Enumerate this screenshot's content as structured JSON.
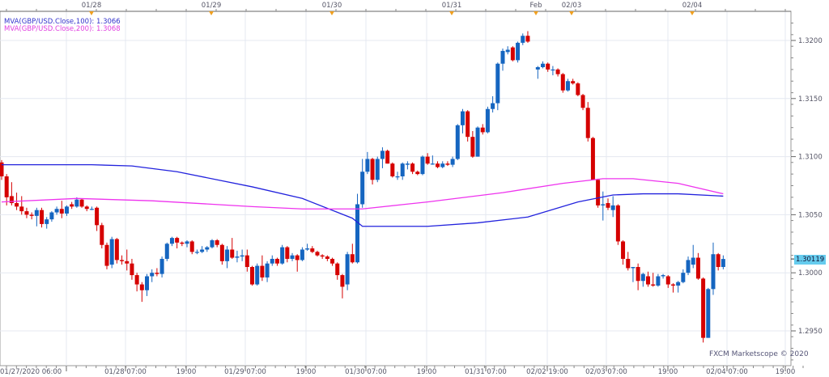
{
  "chart_data": {
    "type": "candlestick",
    "title": "",
    "instrument": "GBP/USD",
    "ylim": [
      1.292,
      1.3225
    ],
    "grid": true,
    "yticks": [
      "1.3200",
      "1.3150",
      "1.3100",
      "1.3050",
      "1.3000",
      "1.2950"
    ],
    "xticks_bottom": [
      "01/27/2020 06:00",
      "01/28 07:00",
      "19:00",
      "01/29 07:00",
      "19:00",
      "01/30 07:00",
      "19:00",
      "01/31 07:00",
      "02/02 19:00",
      "02/03 07:00",
      "19:00",
      "02/04 07:00",
      "19:00"
    ],
    "xticks_top": [
      "01/28",
      "01/29",
      "01/30",
      "01/31",
      "Feb",
      "02/03",
      "02/04"
    ],
    "last_price": "1.30119",
    "colors": {
      "up": "#1565c0",
      "down": "#d50000",
      "ma100": "#2222dd",
      "ma200": "#ee33ee",
      "last_price_bg": "#66ccee",
      "grid": "#e4e8f0"
    },
    "candle_format": [
      "open",
      "high",
      "low",
      "close"
    ],
    "candles": [
      [
        1.3095,
        1.3097,
        1.308,
        1.3083
      ],
      [
        1.3083,
        1.3085,
        1.3058,
        1.3065
      ],
      [
        1.3066,
        1.3078,
        1.3058,
        1.306
      ],
      [
        1.306,
        1.3069,
        1.3054,
        1.3057
      ],
      [
        1.3057,
        1.3066,
        1.305,
        1.3053
      ],
      [
        1.3053,
        1.3056,
        1.3047,
        1.305
      ],
      [
        1.305,
        1.3052,
        1.3046,
        1.3049
      ],
      [
        1.3049,
        1.3056,
        1.304,
        1.3054
      ],
      [
        1.3054,
        1.3056,
        1.3039,
        1.3042
      ],
      [
        1.3042,
        1.3048,
        1.3038,
        1.3046
      ],
      [
        1.3046,
        1.3053,
        1.3044,
        1.3052
      ],
      [
        1.3052,
        1.3057,
        1.305,
        1.3055
      ],
      [
        1.3055,
        1.3062,
        1.3047,
        1.3051
      ],
      [
        1.3051,
        1.3058,
        1.3049,
        1.3057
      ],
      [
        1.3059,
        1.3061,
        1.3055,
        1.3057
      ],
      [
        1.3057,
        1.3065,
        1.3056,
        1.3063
      ],
      [
        1.3063,
        1.3064,
        1.3056,
        1.3057
      ],
      [
        1.3057,
        1.3058,
        1.3053,
        1.3055
      ],
      [
        1.3055,
        1.3057,
        1.3054,
        1.3055
      ],
      [
        1.3056,
        1.3057,
        1.3036,
        1.3041
      ],
      [
        1.3041,
        1.3043,
        1.3021,
        1.3024
      ],
      [
        1.3024,
        1.3026,
        1.3003,
        1.3006
      ],
      [
        1.3007,
        1.3031,
        1.3004,
        1.3029
      ],
      [
        1.3029,
        1.303,
        1.3008,
        1.3011
      ],
      [
        1.3011,
        1.3015,
        1.3007,
        1.301
      ],
      [
        1.301,
        1.302,
        1.3002,
        1.3008
      ],
      [
        1.3008,
        1.3012,
        1.2994,
        1.2998
      ],
      [
        1.2998,
        1.3,
        1.2984,
        1.299
      ],
      [
        1.299,
        1.2992,
        1.2975,
        1.2985
      ],
      [
        1.2985,
        1.2999,
        1.298,
        1.2997
      ],
      [
        1.2997,
        1.3003,
        1.2992,
        1.3
      ],
      [
        1.3,
        1.3004,
        1.2997,
        1.2999
      ],
      [
        1.2999,
        1.3014,
        1.2996,
        1.3012
      ],
      [
        1.3012,
        1.3026,
        1.301,
        1.3025
      ],
      [
        1.3025,
        1.3031,
        1.3023,
        1.303
      ],
      [
        1.303,
        1.3031,
        1.3021,
        1.3026
      ],
      [
        1.3026,
        1.3027,
        1.3023,
        1.3025
      ],
      [
        1.3025,
        1.3028,
        1.3022,
        1.3027
      ],
      [
        1.3027,
        1.3028,
        1.3016,
        1.3018
      ],
      [
        1.3018,
        1.302,
        1.3016,
        1.3018
      ],
      [
        1.3018,
        1.3023,
        1.3017,
        1.302
      ],
      [
        1.302,
        1.3023,
        1.3018,
        1.3022
      ],
      [
        1.3022,
        1.3029,
        1.3021,
        1.3028
      ],
      [
        1.3028,
        1.3029,
        1.3022,
        1.3024
      ],
      [
        1.3024,
        1.3025,
        1.3007,
        1.301
      ],
      [
        1.301,
        1.3023,
        1.3004,
        1.302
      ],
      [
        1.302,
        1.303,
        1.3012,
        1.3013
      ],
      [
        1.3013,
        1.3019,
        1.3009,
        1.3014
      ],
      [
        1.3014,
        1.302,
        1.301,
        1.3015
      ],
      [
        1.3015,
        1.302,
        1.3001,
        1.3005
      ],
      [
        1.3005,
        1.3006,
        1.2989,
        1.299
      ],
      [
        1.299,
        1.3008,
        1.2989,
        1.3006
      ],
      [
        1.3006,
        1.3015,
        1.2993,
        1.2996
      ],
      [
        1.2996,
        1.301,
        1.2992,
        1.3008
      ],
      [
        1.3008,
        1.3015,
        1.3006,
        1.3012
      ],
      [
        1.3012,
        1.3013,
        1.3006,
        1.3008
      ],
      [
        1.3008,
        1.3024,
        1.3007,
        1.3022
      ],
      [
        1.3022,
        1.3023,
        1.3009,
        1.3012
      ],
      [
        1.3012,
        1.3017,
        1.301,
        1.3015
      ],
      [
        1.3015,
        1.3016,
        1.3001,
        1.3011
      ],
      [
        1.3011,
        1.3022,
        1.301,
        1.302
      ],
      [
        1.302,
        1.3025,
        1.3019,
        1.3021
      ],
      [
        1.3021,
        1.3023,
        1.3017,
        1.3018
      ],
      [
        1.3018,
        1.3019,
        1.3014,
        1.3015
      ],
      [
        1.3015,
        1.3016,
        1.3012,
        1.3014
      ],
      [
        1.3014,
        1.3015,
        1.301,
        1.3012
      ],
      [
        1.3012,
        1.3013,
        1.3006,
        1.3008
      ],
      [
        1.3008,
        1.3009,
        1.2994,
        1.2998
      ],
      [
        1.2998,
        1.2999,
        1.2978,
        1.2988
      ],
      [
        1.299,
        1.3018,
        1.2985,
        1.3016
      ],
      [
        1.3016,
        1.3025,
        1.3008,
        1.3009
      ],
      [
        1.3009,
        1.3068,
        1.3008,
        1.3059
      ],
      [
        1.3059,
        1.3098,
        1.3056,
        1.3087
      ],
      [
        1.3087,
        1.3104,
        1.3085,
        1.3098
      ],
      [
        1.3098,
        1.3099,
        1.3076,
        1.308
      ],
      [
        1.308,
        1.31,
        1.3078,
        1.3098
      ],
      [
        1.3098,
        1.3108,
        1.309,
        1.3105
      ],
      [
        1.3105,
        1.3106,
        1.3094,
        1.3094
      ],
      [
        1.3094,
        1.3095,
        1.3082,
        1.3083
      ],
      [
        1.3083,
        1.3087,
        1.308,
        1.3083
      ],
      [
        1.3083,
        1.3095,
        1.308,
        1.3094
      ],
      [
        1.3093,
        1.3096,
        1.3089,
        1.3094
      ],
      [
        1.3094,
        1.3095,
        1.3085,
        1.3087
      ],
      [
        1.3087,
        1.3088,
        1.3084,
        1.3085
      ],
      [
        1.3085,
        1.3101,
        1.3084,
        1.31
      ],
      [
        1.31,
        1.3103,
        1.3093,
        1.3094
      ],
      [
        1.3094,
        1.3101,
        1.3093,
        1.3094
      ],
      [
        1.3094,
        1.3096,
        1.309,
        1.3091
      ],
      [
        1.3091,
        1.3096,
        1.309,
        1.3094
      ],
      [
        1.3094,
        1.3096,
        1.3092,
        1.3093
      ],
      [
        1.3093,
        1.31,
        1.3091,
        1.3098
      ],
      [
        1.3098,
        1.3128,
        1.3097,
        1.3127
      ],
      [
        1.3127,
        1.3141,
        1.312,
        1.3139
      ],
      [
        1.3139,
        1.314,
        1.3113,
        1.3117
      ],
      [
        1.3117,
        1.3122,
        1.3099,
        1.31
      ],
      [
        1.31,
        1.3126,
        1.31,
        1.3125
      ],
      [
        1.3125,
        1.3128,
        1.3119,
        1.3121
      ],
      [
        1.3121,
        1.3143,
        1.312,
        1.3141
      ],
      [
        1.3141,
        1.3152,
        1.3138,
        1.3146
      ],
      [
        1.3146,
        1.3181,
        1.314,
        1.318
      ],
      [
        1.318,
        1.3193,
        1.3174,
        1.3191
      ],
      [
        1.319,
        1.3195,
        1.3188,
        1.3192
      ],
      [
        1.3194,
        1.3195,
        1.3182,
        1.3183
      ],
      [
        1.3183,
        1.3199,
        1.3181,
        1.3198
      ],
      [
        1.3198,
        1.3206,
        1.3196,
        1.3204
      ],
      [
        1.3204,
        1.3208,
        1.3198,
        1.3199
      ],
      null,
      [
        1.3175,
        1.3178,
        1.3167,
        1.3177
      ],
      [
        1.3177,
        1.3182,
        1.3176,
        1.318
      ],
      [
        1.318,
        1.3181,
        1.3173,
        1.3175
      ],
      [
        1.3175,
        1.3178,
        1.317,
        1.3175
      ],
      [
        1.3175,
        1.3176,
        1.3169,
        1.3171
      ],
      [
        1.3171,
        1.3172,
        1.3155,
        1.3157
      ],
      [
        1.3157,
        1.3167,
        1.3156,
        1.3165
      ],
      [
        1.3165,
        1.3167,
        1.3162,
        1.3163
      ],
      [
        1.3163,
        1.3164,
        1.3152,
        1.3153
      ],
      [
        1.3153,
        1.3154,
        1.314,
        1.3142
      ],
      [
        1.3142,
        1.3147,
        1.3113,
        1.3116
      ],
      [
        1.3116,
        1.3117,
        1.308,
        1.308
      ],
      [
        1.308,
        1.3081,
        1.3056,
        1.3058
      ],
      [
        1.3058,
        1.307,
        1.3045,
        1.3059
      ],
      [
        1.306,
        1.3064,
        1.3054,
        1.3056
      ],
      [
        1.3054,
        1.3066,
        1.3048,
        1.3058
      ],
      [
        1.3058,
        1.3059,
        1.3024,
        1.3027
      ],
      [
        1.3027,
        1.3028,
        1.3007,
        1.3012
      ],
      [
        1.3012,
        1.3018,
        1.3002,
        1.3004
      ],
      [
        1.3004,
        1.3005,
        1.2992,
        1.3005
      ],
      [
        1.3005,
        1.3008,
        1.2985,
        1.2993
      ],
      [
        1.2993,
        1.3,
        1.2988,
        1.2999
      ],
      [
        1.2997,
        1.3001,
        1.2988,
        1.299
      ],
      [
        1.299,
        1.3,
        1.2988,
        1.2989
      ],
      [
        1.2989,
        1.2999,
        1.2988,
        1.2997
      ],
      [
        1.2997,
        1.2999,
        1.2995,
        1.2998
      ],
      [
        1.2997,
        1.2998,
        1.2987,
        1.299
      ],
      [
        1.299,
        1.2991,
        1.2983,
        1.2989
      ],
      [
        1.2989,
        1.2993,
        1.2983,
        1.2992
      ],
      [
        1.2992,
        1.3003,
        1.2991,
        1.3
      ],
      [
        1.3,
        1.3014,
        1.2998,
        1.3011
      ],
      [
        1.3007,
        1.3024,
        1.3004,
        1.3013
      ],
      [
        1.3013,
        1.3017,
        1.2994,
        1.2995
      ],
      [
        1.2995,
        1.2996,
        1.294,
        1.2944
      ],
      [
        1.2944,
        1.2987,
        1.2944,
        1.2986
      ],
      [
        1.2986,
        1.3026,
        1.2981,
        1.3016
      ],
      [
        1.3016,
        1.3017,
        1.3002,
        1.3005
      ],
      [
        1.3005,
        1.3015,
        1.3003,
        1.30119
      ]
    ],
    "series": [
      {
        "name": "MVA(GBP/USD.Close,100)",
        "last": "1.3066",
        "points": [
          [
            0,
            1.3093
          ],
          [
            18,
            1.3093
          ],
          [
            26,
            1.3092
          ],
          [
            35,
            1.3087
          ],
          [
            50,
            1.3074
          ],
          [
            60,
            1.3064
          ],
          [
            70,
            1.3047
          ],
          [
            72,
            1.304
          ],
          [
            85,
            1.304
          ],
          [
            95,
            1.3043
          ],
          [
            105,
            1.3048
          ],
          [
            115,
            1.3061
          ],
          [
            122,
            1.3067
          ],
          [
            128,
            1.3068
          ],
          [
            135,
            1.3068
          ],
          [
            144,
            1.3066
          ]
        ]
      },
      {
        "name": "MVA(GBP/USD.Close,200)",
        "last": "1.3068",
        "points": [
          [
            0,
            1.3061
          ],
          [
            15,
            1.3064
          ],
          [
            30,
            1.3062
          ],
          [
            50,
            1.3057
          ],
          [
            60,
            1.3055
          ],
          [
            72,
            1.3055
          ],
          [
            85,
            1.3061
          ],
          [
            100,
            1.3069
          ],
          [
            112,
            1.3077
          ],
          [
            120,
            1.3081
          ],
          [
            126,
            1.3081
          ],
          [
            135,
            1.3077
          ],
          [
            144,
            1.3068
          ]
        ]
      }
    ]
  },
  "legend": {
    "ma100": "MVA(GBP/USD.Close,100): 1.3066",
    "ma200": "MVA(GBP/USD.Close,200): 1.3068"
  },
  "watermark": "FXCM Marketscope © 2020"
}
